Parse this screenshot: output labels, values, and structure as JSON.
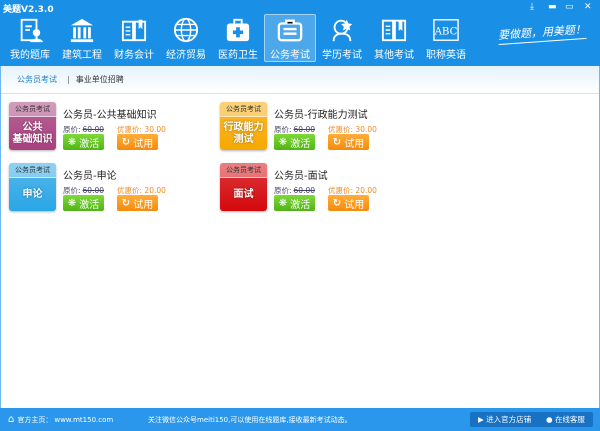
{
  "window": {
    "title": "美题V2.3.0",
    "controls": [
      "download",
      "minimize",
      "maximize",
      "close"
    ]
  },
  "nav": {
    "items": [
      {
        "label": "我的题库",
        "icon": "question-bank-icon"
      },
      {
        "label": "建筑工程",
        "icon": "building-icon"
      },
      {
        "label": "财务会计",
        "icon": "book-icon"
      },
      {
        "label": "经济贸易",
        "icon": "globe-icon"
      },
      {
        "label": "医药卫生",
        "icon": "medical-kit-icon"
      },
      {
        "label": "公务考试",
        "icon": "briefcase-icon",
        "selected": true
      },
      {
        "label": "学历考试",
        "icon": "graduate-icon"
      },
      {
        "label": "其他考试",
        "icon": "open-book-icon"
      },
      {
        "label": "职称英语",
        "icon": "abc-icon"
      }
    ],
    "slogan": "要做题，用美题！"
  },
  "subnav": {
    "tabs": [
      "公务员考试",
      "事业单位招聘"
    ],
    "active": 0
  },
  "cards": [
    {
      "badge_top": "公务员考试",
      "badge_main": "公共\n基础知识",
      "color": "#a8407f",
      "title": "公务员-公共基础知识",
      "orig_label": "原价:",
      "orig_price": "60.00",
      "disc_label": "优惠价:",
      "disc_price": "30.00",
      "activate": "激活",
      "trial": "试用"
    },
    {
      "badge_top": "公务员考试",
      "badge_main": "行政能力\n测试",
      "color": "#f7a800",
      "title": "公务员-行政能力测试",
      "orig_label": "原价:",
      "orig_price": "60.00",
      "disc_label": "优惠价:",
      "disc_price": "30.00",
      "activate": "激活",
      "trial": "试用"
    },
    {
      "badge_top": "公务员考试",
      "badge_main": "申论",
      "color": "#2aa6e6",
      "title": "公务员-申论",
      "orig_label": "原价:",
      "orig_price": "60.00",
      "disc_label": "优惠价:",
      "disc_price": "20.00",
      "activate": "激活",
      "trial": "试用"
    },
    {
      "badge_top": "公务员考试",
      "badge_main": "面试",
      "color": "#d4080c",
      "title": "公务员-面试",
      "orig_label": "原价:",
      "orig_price": "60.00",
      "disc_label": "优惠价:",
      "disc_price": "20.00",
      "activate": "激活",
      "trial": "试用"
    }
  ],
  "footer": {
    "home_label": "官方主页：",
    "home_url": "www.mt150.com",
    "notice": "关注微信公众号meiti150,可以使用在线题库,接收最新考试动态。",
    "shop_button": "进入官方店铺",
    "service_button": "在线客服"
  }
}
